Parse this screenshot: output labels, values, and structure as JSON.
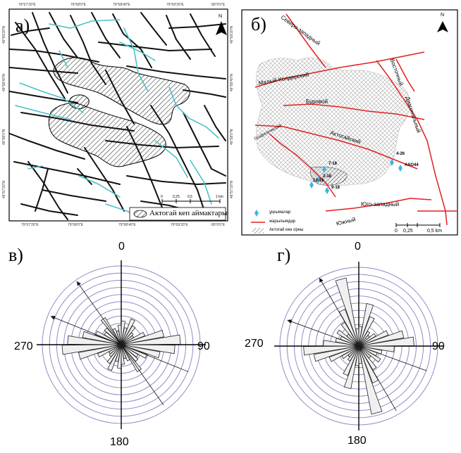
{
  "panel_a": {
    "label": "а)",
    "legend_text": "Актогай кеп аймактары",
    "coord_top": [
      "79°57'20\"E",
      "79°58'0\"E",
      "79°58'40\"E",
      "79°59'20\"E",
      "80°0'0\"E"
    ],
    "coord_bottom": [
      "79°57'20\"E",
      "79°58'0\"E",
      "79°58'40\"E",
      "79°59'20\"E",
      "80°0'0\"E"
    ],
    "coord_left": [
      "46°59'20\"N",
      "46°58'40\"N",
      "46°58'0\"N",
      "46°57'20\"N"
    ],
    "coord_right": [
      "46°59'20\"N",
      "46°58'40\"N",
      "46°58'0\"N",
      "46°57'20\"N"
    ],
    "scale_labels": [
      "0",
      "0,25",
      "0,5",
      "1 km"
    ],
    "north": "N"
  },
  "panel_b": {
    "label": "б)",
    "north": "N",
    "fault_names": {
      "northwest": "Северо-западный",
      "maly_koldersky": "Малый-Колдерский",
      "eastern": "Восточный",
      "burovoy": "Буровой",
      "diagonal": "Диагональный",
      "geophysical": "Геофизический",
      "aktogay": "Актогайский",
      "southwest": "Юго-западный",
      "southern": "Южный"
    },
    "points": [
      "4-26",
      "ASO44",
      "7-18",
      "2-18",
      "12-16",
      "9-18"
    ],
    "legend": [
      "ұңғымалар",
      "жарылымдар",
      "Актогай кен орны"
    ],
    "scale_labels": [
      "0",
      "0,25",
      "0,5 km"
    ]
  },
  "rose_v": {
    "label": "в)",
    "axis_labels": {
      "top": "0",
      "right": "90",
      "bottom": "180",
      "left": "270"
    }
  },
  "rose_g": {
    "label": "г)",
    "axis_labels": {
      "top": "0",
      "right": "90",
      "bottom": "180",
      "left": "270"
    }
  }
}
